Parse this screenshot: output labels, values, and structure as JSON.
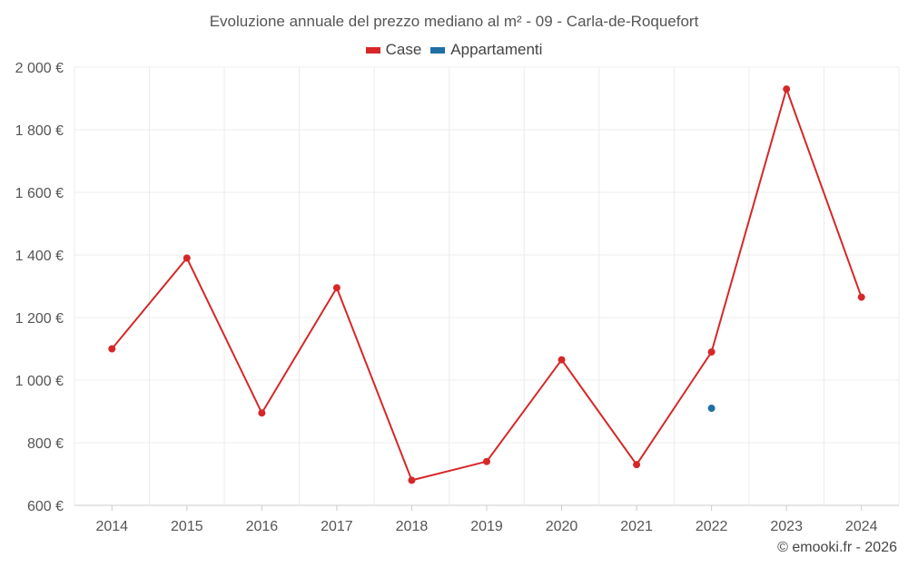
{
  "chart_data": {
    "type": "line",
    "title": "Evoluzione annuale del prezzo mediano al m² - 09 - Carla-de-Roquefort",
    "xlabel": "",
    "ylabel": "",
    "categories": [
      "2014",
      "2015",
      "2016",
      "2017",
      "2018",
      "2019",
      "2020",
      "2021",
      "2022",
      "2023",
      "2024"
    ],
    "ylim": [
      600,
      2000
    ],
    "yticks": [
      600,
      800,
      1000,
      1200,
      1400,
      1600,
      1800,
      2000
    ],
    "ytick_labels": [
      "600 €",
      "800 €",
      "1 000 €",
      "1 200 €",
      "1 400 €",
      "1 600 €",
      "1 800 €",
      "2 000 €"
    ],
    "grid": true,
    "legend": "top-center",
    "series": [
      {
        "name": "Case",
        "color": "#d62728",
        "values": [
          1100,
          1390,
          895,
          1295,
          680,
          740,
          1065,
          730,
          1090,
          1930,
          1265
        ]
      },
      {
        "name": "Appartamenti",
        "color": "#1f6fa5",
        "values": [
          null,
          null,
          null,
          null,
          null,
          null,
          null,
          null,
          910,
          null,
          null
        ]
      }
    ]
  },
  "credit": "© emooki.fr - 2026"
}
